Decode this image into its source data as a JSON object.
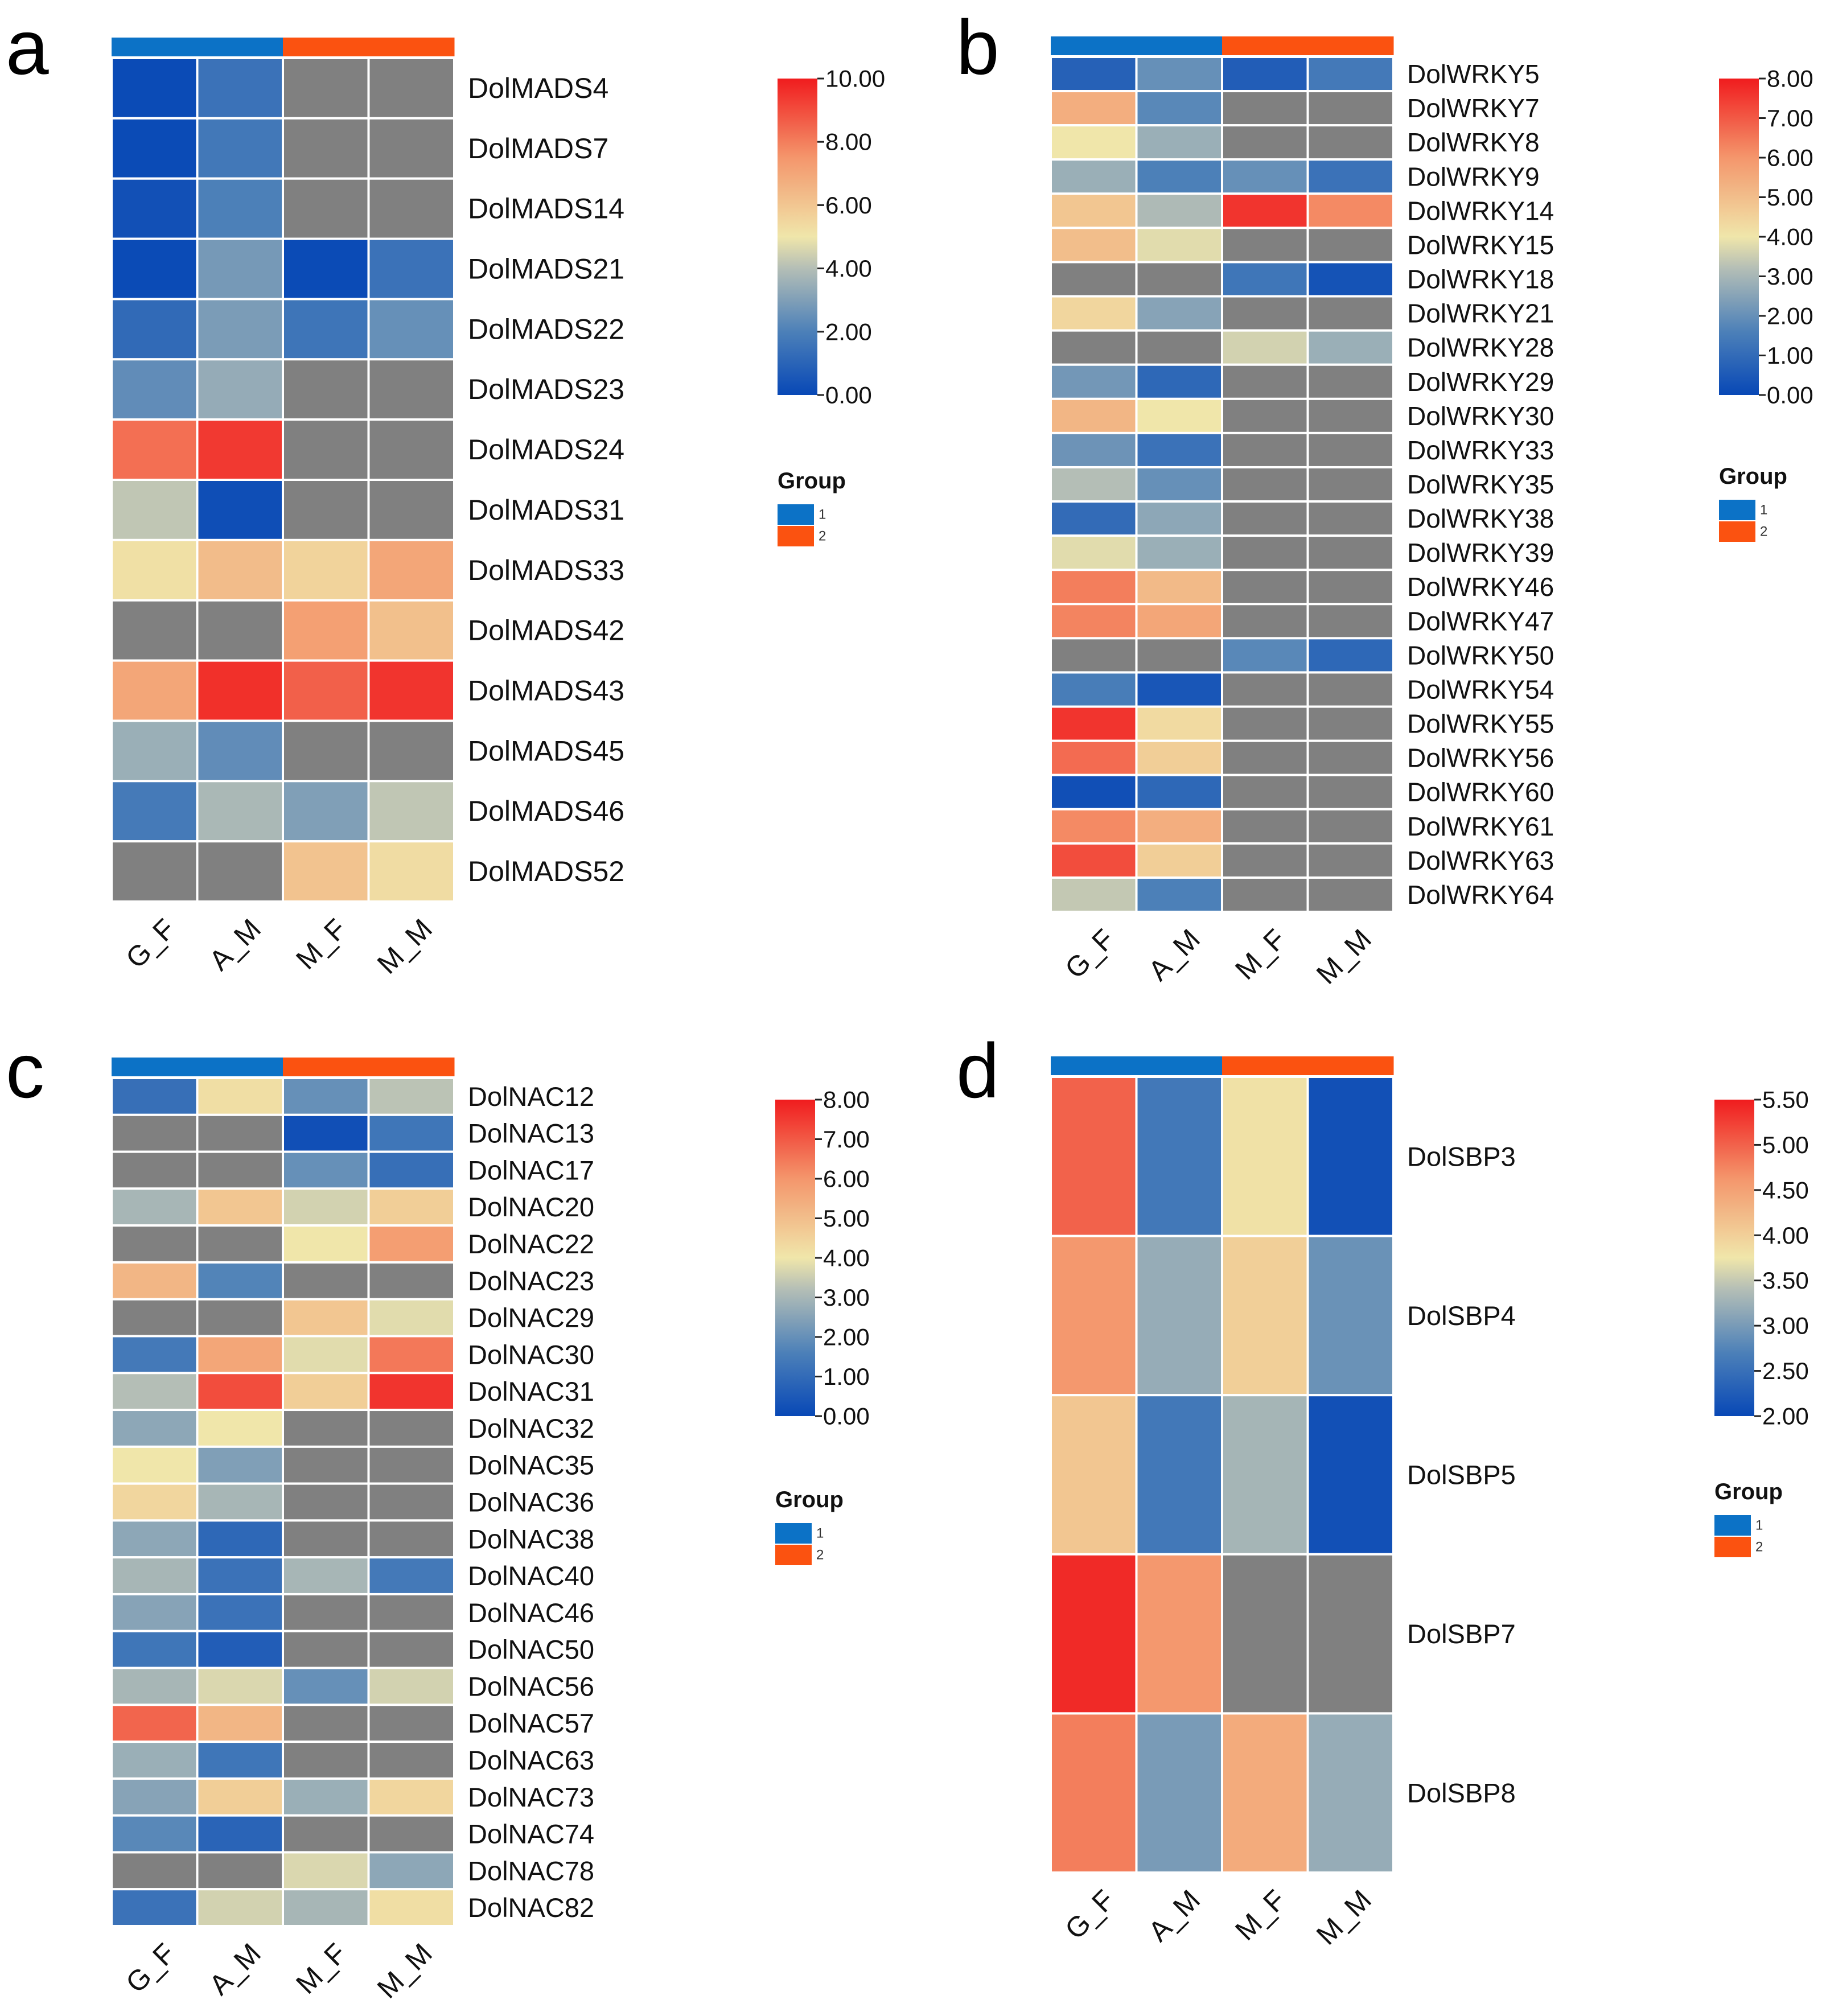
{
  "chart_data": [
    {
      "type": "heatmap",
      "panel_label": "a",
      "columns": [
        "G_F",
        "A_M",
        "M_F",
        "M_M"
      ],
      "groups": [
        1,
        1,
        2,
        2
      ],
      "group_legend": {
        "title": "Group",
        "entries": [
          "1",
          "2"
        ],
        "colors": [
          "#0C72C6",
          "#FB5210"
        ]
      },
      "missing_color": "#808080",
      "color_scale": {
        "min": 0,
        "max": 10,
        "ticks": [
          "0.00",
          "2.00",
          "4.00",
          "6.00",
          "8.00",
          "10.00"
        ],
        "tick_values": [
          0,
          2,
          4,
          6,
          8,
          10
        ]
      },
      "rows": [
        "DolMADS4",
        "DolMADS7",
        "DolMADS14",
        "DolMADS21",
        "DolMADS22",
        "DolMADS23",
        "DolMADS24",
        "DolMADS31",
        "DolMADS33",
        "DolMADS42",
        "DolMADS43",
        "DolMADS45",
        "DolMADS46",
        "DolMADS52"
      ],
      "values": [
        [
          0.1,
          1.5,
          null,
          null
        ],
        [
          0.1,
          1.7,
          null,
          null
        ],
        [
          0.3,
          2.0,
          null,
          null
        ],
        [
          0.1,
          2.8,
          0.1,
          1.5
        ],
        [
          1.2,
          2.9,
          1.6,
          2.5
        ],
        [
          2.4,
          3.4,
          null,
          null
        ],
        [
          8.3,
          9.4,
          null,
          null
        ],
        [
          4.2,
          0.2,
          null,
          null
        ],
        [
          5.2,
          6.3,
          5.6,
          7.0
        ],
        [
          null,
          null,
          7.2,
          6.2
        ],
        [
          7.0,
          9.6,
          8.6,
          9.5
        ],
        [
          3.5,
          2.4,
          null,
          null
        ],
        [
          1.8,
          3.8,
          3.0,
          4.2
        ],
        [
          null,
          null,
          6.1,
          5.3
        ]
      ]
    },
    {
      "type": "heatmap",
      "panel_label": "b",
      "columns": [
        "G_F",
        "A_M",
        "M_F",
        "M_M"
      ],
      "groups": [
        1,
        1,
        2,
        2
      ],
      "group_legend": {
        "title": "Group",
        "entries": [
          "1",
          "2"
        ],
        "colors": [
          "#0C72C6",
          "#FB5210"
        ]
      },
      "missing_color": "#808080",
      "color_scale": {
        "min": 0,
        "max": 8,
        "ticks": [
          "0.00",
          "1.00",
          "2.00",
          "3.00",
          "4.00",
          "5.00",
          "6.00",
          "7.00",
          "8.00"
        ],
        "tick_values": [
          0,
          1,
          2,
          3,
          4,
          5,
          6,
          7,
          8
        ]
      },
      "rows": [
        "DolWRKY5",
        "DolWRKY7",
        "DolWRKY8",
        "DolWRKY9",
        "DolWRKY14",
        "DolWRKY15",
        "DolWRKY18",
        "DolWRKY21",
        "DolWRKY28",
        "DolWRKY29",
        "DolWRKY30",
        "DolWRKY33",
        "DolWRKY35",
        "DolWRKY38",
        "DolWRKY39",
        "DolWRKY46",
        "DolWRKY47",
        "DolWRKY50",
        "DolWRKY54",
        "DolWRKY55",
        "DolWRKY56",
        "DolWRKY60",
        "DolWRKY61",
        "DolWRKY63",
        "DolWRKY64"
      ],
      "values": [
        [
          0.7,
          2.0,
          0.6,
          1.4
        ],
        [
          5.4,
          1.8,
          null,
          null
        ],
        [
          4.0,
          2.8,
          null,
          null
        ],
        [
          2.8,
          1.6,
          2.0,
          1.2
        ],
        [
          4.8,
          3.1,
          7.6,
          6.2
        ],
        [
          5.0,
          3.8,
          null,
          null
        ],
        [
          null,
          null,
          1.3,
          0.3
        ],
        [
          4.4,
          2.5,
          null,
          null
        ],
        [
          null,
          null,
          3.6,
          2.8
        ],
        [
          2.2,
          0.9,
          null,
          null
        ],
        [
          5.2,
          4.0,
          null,
          null
        ],
        [
          2.1,
          1.2,
          null,
          null
        ],
        [
          3.2,
          2.0,
          null,
          null
        ],
        [
          1.0,
          2.6,
          null,
          null
        ],
        [
          3.8,
          2.8,
          null,
          null
        ],
        [
          6.4,
          5.1,
          null,
          null
        ],
        [
          6.3,
          5.6,
          null,
          null
        ],
        [
          null,
          null,
          1.8,
          0.9
        ],
        [
          1.5,
          0.4,
          null,
          null
        ],
        [
          7.6,
          4.3,
          null,
          null
        ],
        [
          6.7,
          4.6,
          null,
          null
        ],
        [
          0.2,
          0.9,
          null,
          null
        ],
        [
          6.2,
          5.4,
          null,
          null
        ],
        [
          7.2,
          4.6,
          null,
          null
        ],
        [
          3.4,
          1.6,
          null,
          null
        ]
      ]
    },
    {
      "type": "heatmap",
      "panel_label": "c",
      "columns": [
        "G_F",
        "A_M",
        "M_F",
        "M_M"
      ],
      "groups": [
        1,
        1,
        2,
        2
      ],
      "group_legend": {
        "title": "Group",
        "entries": [
          "1",
          "2"
        ],
        "colors": [
          "#0C72C6",
          "#FB5210"
        ]
      },
      "missing_color": "#808080",
      "color_scale": {
        "min": 0,
        "max": 8,
        "ticks": [
          "0.00",
          "1.00",
          "2.00",
          "3.00",
          "4.00",
          "5.00",
          "6.00",
          "7.00",
          "8.00"
        ],
        "tick_values": [
          0,
          1,
          2,
          3,
          4,
          5,
          6,
          7,
          8
        ]
      },
      "rows": [
        "DolNAC12",
        "DolNAC13",
        "DolNAC17",
        "DolNAC20",
        "DolNAC22",
        "DolNAC23",
        "DolNAC29",
        "DolNAC30",
        "DolNAC31",
        "DolNAC32",
        "DolNAC35",
        "DolNAC36",
        "DolNAC38",
        "DolNAC40",
        "DolNAC46",
        "DolNAC50",
        "DolNAC56",
        "DolNAC57",
        "DolNAC63",
        "DolNAC73",
        "DolNAC74",
        "DolNAC78",
        "DolNAC82"
      ],
      "values": [
        [
          1.1,
          4.2,
          2.0,
          3.3
        ],
        [
          null,
          null,
          0.2,
          1.3
        ],
        [
          null,
          null,
          2.0,
          1.1
        ],
        [
          3.0,
          4.8,
          3.6,
          4.6
        ],
        [
          null,
          null,
          4.0,
          5.8
        ],
        [
          5.2,
          1.7,
          null,
          null
        ],
        [
          null,
          null,
          4.8,
          3.8
        ],
        [
          1.4,
          5.6,
          3.8,
          6.5
        ],
        [
          3.2,
          7.2,
          4.6,
          7.6
        ],
        [
          2.6,
          4.0,
          null,
          null
        ],
        [
          4.0,
          2.4,
          null,
          null
        ],
        [
          4.4,
          3.0,
          null,
          null
        ],
        [
          2.6,
          0.9,
          null,
          null
        ],
        [
          3.0,
          1.2,
          3.0,
          1.4
        ],
        [
          2.5,
          1.2,
          null,
          null
        ],
        [
          1.3,
          0.6,
          null,
          null
        ],
        [
          3.0,
          3.7,
          2.0,
          3.6
        ],
        [
          6.8,
          5.2,
          null,
          null
        ],
        [
          2.8,
          1.3,
          null,
          null
        ],
        [
          2.5,
          4.6,
          2.8,
          4.4
        ],
        [
          1.8,
          0.8,
          null,
          null
        ],
        [
          null,
          null,
          3.7,
          2.6
        ],
        [
          1.2,
          3.6,
          3.0,
          4.2
        ]
      ]
    },
    {
      "type": "heatmap",
      "panel_label": "d",
      "columns": [
        "G_F",
        "A_M",
        "M_F",
        "M_M"
      ],
      "groups": [
        1,
        1,
        2,
        2
      ],
      "group_legend": {
        "title": "Group",
        "entries": [
          "1",
          "2"
        ],
        "colors": [
          "#0C72C6",
          "#FB5210"
        ]
      },
      "missing_color": "#808080",
      "color_scale": {
        "min": 2,
        "max": 5.5,
        "ticks": [
          "2.00",
          "2.50",
          "3.00",
          "3.50",
          "4.00",
          "4.50",
          "5.00",
          "5.50"
        ],
        "tick_values": [
          2,
          2.5,
          3,
          3.5,
          4,
          4.5,
          5,
          5.5
        ]
      },
      "rows": [
        "DolSBP3",
        "DolSBP4",
        "DolSBP5",
        "DolSBP7",
        "DolSBP8"
      ],
      "values": [
        [
          5.0,
          2.6,
          3.8,
          2.1
        ],
        [
          4.6,
          3.2,
          4.0,
          2.9
        ],
        [
          4.1,
          2.6,
          3.3,
          2.1
        ],
        [
          5.4,
          4.6,
          null,
          null
        ],
        [
          4.8,
          3.0,
          4.4,
          3.2
        ]
      ]
    }
  ]
}
